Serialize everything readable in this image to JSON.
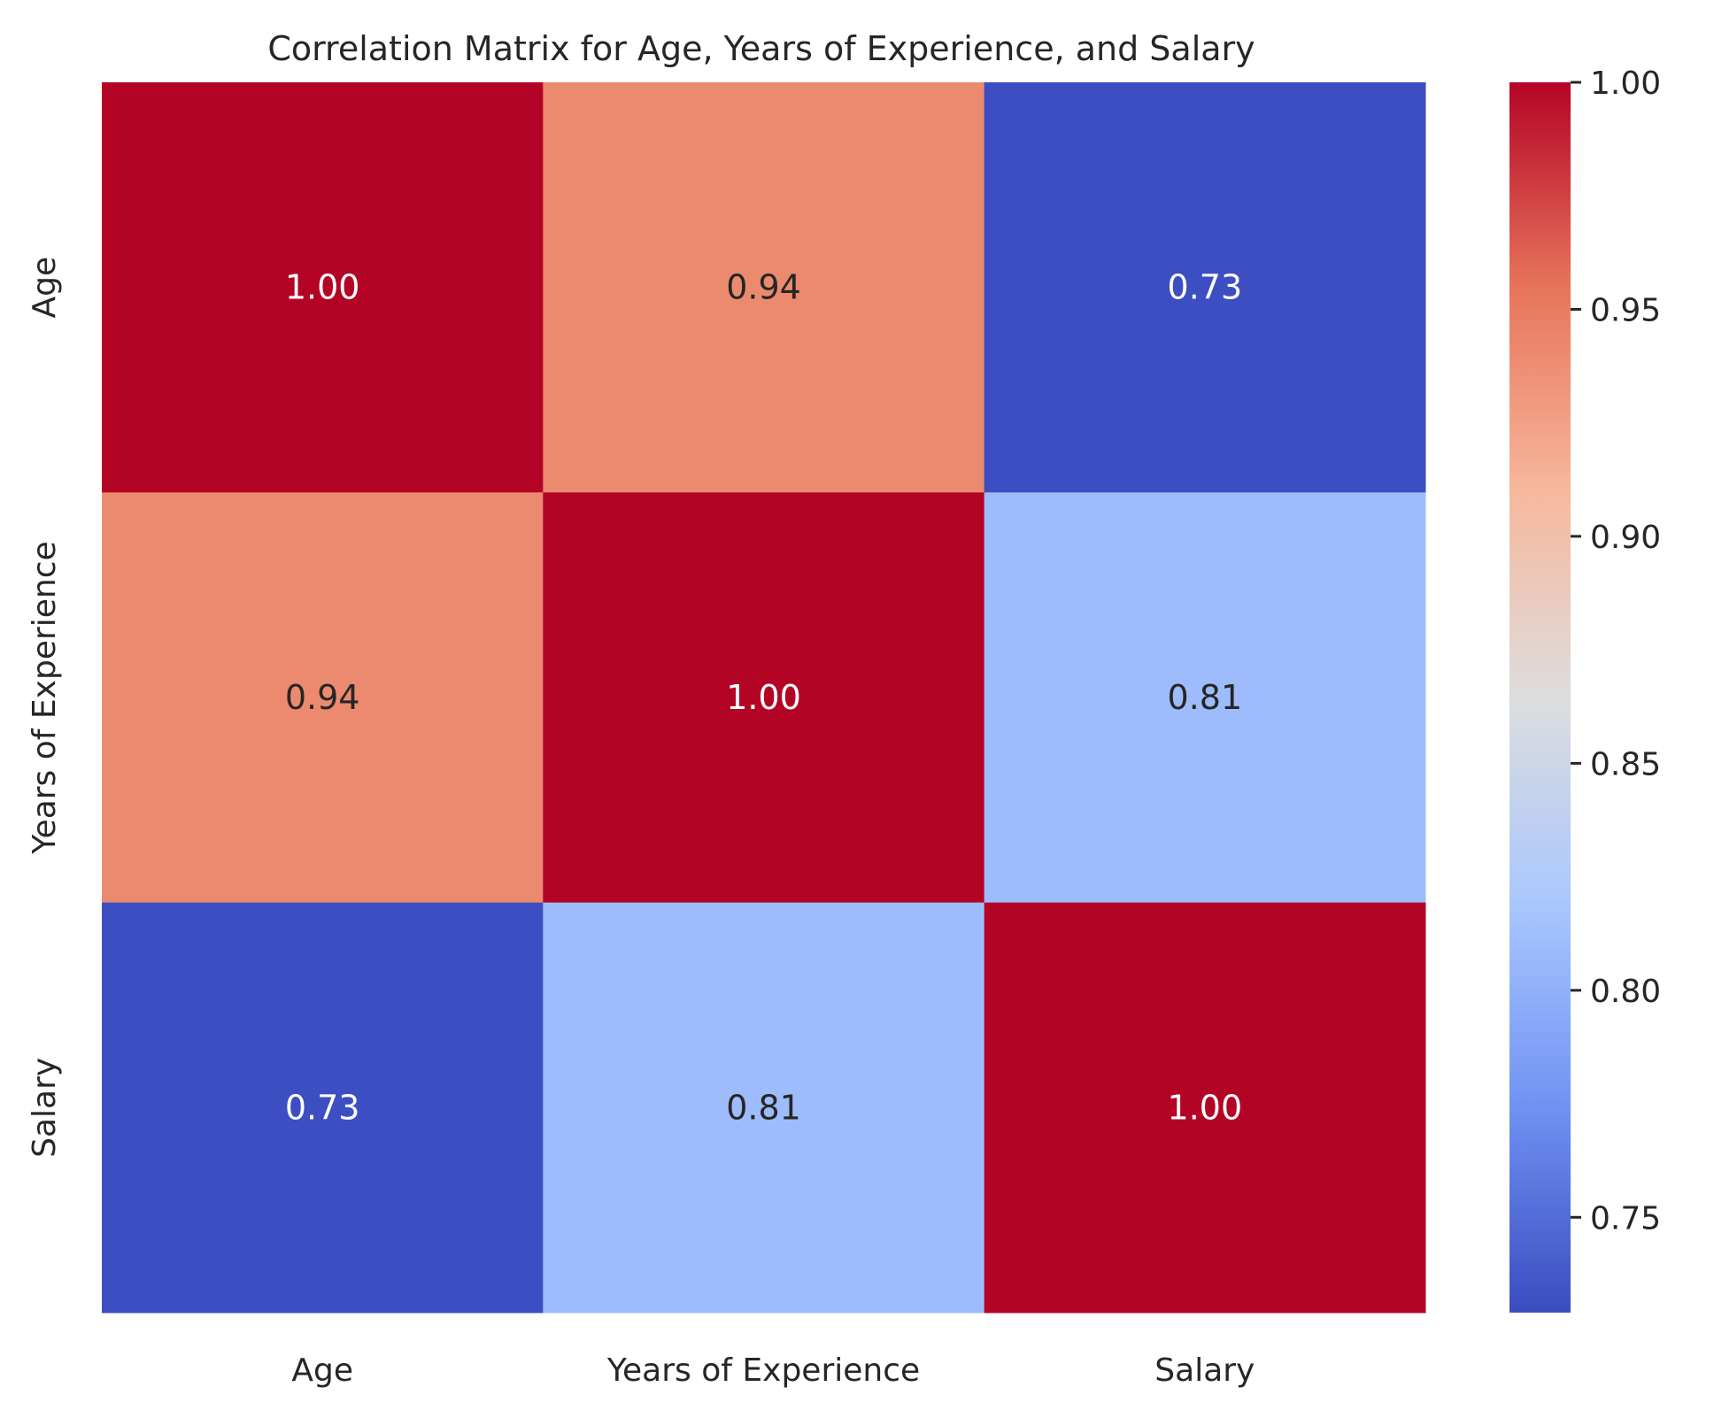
{
  "chart_data": {
    "type": "heatmap",
    "title": "Correlation Matrix for Age, Years of Experience, and Salary",
    "xlabel": "",
    "ylabel": "",
    "x_categories": [
      "Age",
      "Years of Experience",
      "Salary"
    ],
    "y_categories": [
      "Age",
      "Years of Experience",
      "Salary"
    ],
    "values": [
      [
        1.0,
        0.94,
        0.73
      ],
      [
        0.94,
        1.0,
        0.81
      ],
      [
        0.73,
        0.81,
        1.0
      ]
    ],
    "value_format": "0.00",
    "colormap": "coolwarm",
    "colormap_stops": [
      "#3b4cc0",
      "#6f92f3",
      "#aac7fd",
      "#dddddd",
      "#f7b89c",
      "#e7745b",
      "#b40426"
    ],
    "colorbar": {
      "min": 0.729,
      "max": 1.0,
      "ticks": [
        0.75,
        0.8,
        0.85,
        0.9,
        0.95,
        1.0
      ],
      "tick_labels": [
        "0.75",
        "0.80",
        "0.85",
        "0.90",
        "0.95",
        "1.00"
      ],
      "placement": "right"
    },
    "grid": false
  }
}
